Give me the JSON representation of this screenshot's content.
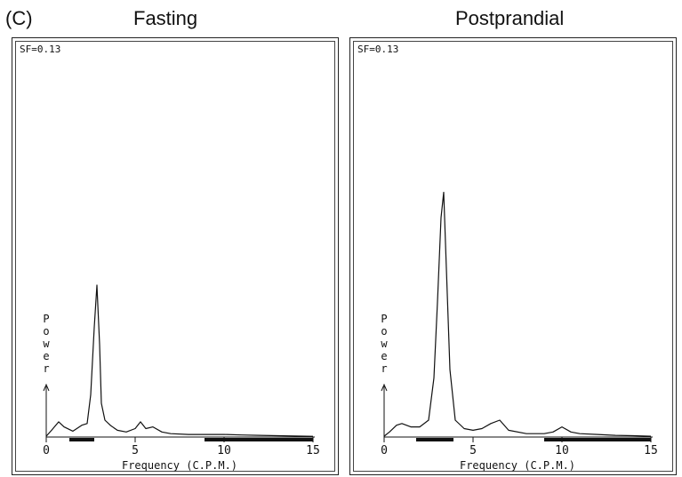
{
  "panel_letter": "(C)",
  "chart_data": [
    {
      "type": "line",
      "title": "Fasting",
      "annotation": "SF=0.13",
      "xlabel": "Frequency (C.P.M.)",
      "ylabel": "Power",
      "xlim": [
        0,
        15
      ],
      "xticks": [
        0,
        5,
        10,
        15
      ],
      "grid": false,
      "series": [
        {
          "x": [
            0,
            0.3,
            0.7,
            1.0,
            1.5,
            2.0,
            2.3,
            2.5,
            2.7,
            2.85,
            3.0,
            3.1,
            3.3,
            3.6,
            4.0,
            4.5,
            5.0,
            5.3,
            5.6,
            6.0,
            6.5,
            7.0,
            8.0,
            9.0,
            10.0,
            11.0,
            12.0,
            13.0,
            14.0,
            15.0
          ],
          "y": [
            0.5,
            4,
            9,
            6,
            3.5,
            7,
            8,
            25,
            65,
            90,
            55,
            20,
            10,
            7,
            4,
            3,
            5,
            9,
            5,
            6,
            3,
            2,
            1.5,
            1.5,
            1.5,
            1.2,
            1.0,
            0.8,
            0.6,
            0.4
          ]
        }
      ],
      "bands": [
        [
          1.3,
          2.7
        ],
        [
          8.9,
          15.0
        ]
      ]
    },
    {
      "type": "line",
      "title": "Postprandial",
      "annotation": "SF=0.13",
      "xlabel": "Frequency (C.P.M.)",
      "ylabel": "Power",
      "xlim": [
        0,
        15
      ],
      "xticks": [
        0,
        5,
        10,
        15
      ],
      "grid": false,
      "series": [
        {
          "x": [
            0,
            0.3,
            0.7,
            1.0,
            1.5,
            2.0,
            2.5,
            2.8,
            3.0,
            3.2,
            3.35,
            3.5,
            3.7,
            4.0,
            4.5,
            5.0,
            5.5,
            6.0,
            6.5,
            7.0,
            8.0,
            9.0,
            9.5,
            10.0,
            10.5,
            11.0,
            12.0,
            13.0,
            14.0,
            15.0
          ],
          "y": [
            0.5,
            3,
            7,
            8,
            6,
            6,
            10,
            35,
            80,
            130,
            145,
            100,
            40,
            10,
            5,
            4,
            5,
            8,
            10,
            4,
            2,
            2,
            3,
            6,
            3,
            2,
            1.5,
            1.0,
            0.8,
            0.5
          ]
        }
      ],
      "bands": [
        [
          1.8,
          3.9
        ],
        [
          9.0,
          15.0
        ]
      ]
    }
  ]
}
